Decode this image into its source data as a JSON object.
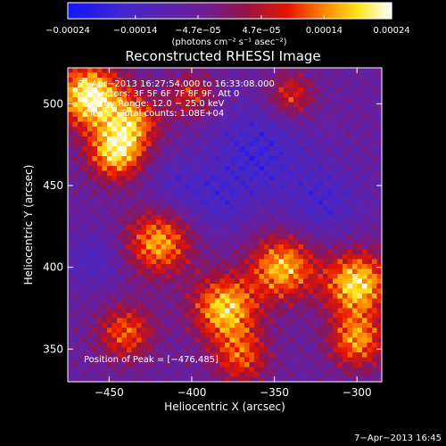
{
  "chart_data": {
    "type": "heatmap",
    "title": "Reconstructed RHESSI Image",
    "xlabel": "Heliocentric X (arcsec)",
    "ylabel": "Heliocentric Y (arcsec)",
    "xlim": [
      -475,
      -285
    ],
    "ylim": [
      330,
      522
    ],
    "x_ticks": [
      -450,
      -400,
      -350,
      -300
    ],
    "x_tick_labels": [
      "−450",
      "−400",
      "−350",
      "−300"
    ],
    "y_ticks": [
      350,
      400,
      450,
      500
    ],
    "y_tick_labels": [
      "350",
      "400",
      "450",
      "500"
    ],
    "grid": false,
    "colorbar": {
      "colormap": "blue-purple-red-yellow-white",
      "vmin": -0.00024,
      "vmax": 0.00024,
      "ticks": [
        -0.00024,
        -0.00014,
        -4.7e-05,
        4.7e-05,
        0.00014,
        0.00024
      ],
      "tick_labels": [
        "−0.00024",
        "−0.00014",
        "−4.7e−05",
        "4.7e−05",
        "0.00014",
        "0.00024"
      ],
      "unit_label": "(photons cm⁻² s⁻¹ asec⁻²)"
    },
    "annotations": [
      "7−Apr−2013 16:27:54.000 to 16:33:08.000",
      "Detectors: 3F 5F 6F 7F 8F 9F, Att 0",
      "Energy Range: 12.0 − 25.0 keV",
      "Clean    Total counts: 1.08E+04",
      "Position of Peak = [−476,485]"
    ],
    "peak_position": [
      -476,
      485
    ],
    "hot_regions": [
      {
        "x": -462,
        "y": 505,
        "amplitude": 1.0,
        "spread": 14
      },
      {
        "x": -446,
        "y": 470,
        "amplitude": 0.85,
        "spread": 12
      },
      {
        "x": -435,
        "y": 490,
        "amplitude": 0.6,
        "spread": 12
      },
      {
        "x": -400,
        "y": 505,
        "amplitude": 0.45,
        "spread": 10
      },
      {
        "x": -340,
        "y": 505,
        "amplitude": 0.5,
        "spread": 10
      },
      {
        "x": -420,
        "y": 415,
        "amplitude": 0.75,
        "spread": 14
      },
      {
        "x": -440,
        "y": 360,
        "amplitude": 0.6,
        "spread": 12
      },
      {
        "x": -380,
        "y": 375,
        "amplitude": 0.85,
        "spread": 14
      },
      {
        "x": -345,
        "y": 400,
        "amplitude": 0.8,
        "spread": 14
      },
      {
        "x": -300,
        "y": 390,
        "amplitude": 0.9,
        "spread": 14
      },
      {
        "x": -300,
        "y": 355,
        "amplitude": 0.7,
        "spread": 12
      },
      {
        "x": -370,
        "y": 345,
        "amplitude": 0.55,
        "spread": 12
      }
    ],
    "cold_regions": [
      {
        "x": -360,
        "y": 470,
        "amplitude": 0.7,
        "spread": 20
      },
      {
        "x": -320,
        "y": 440,
        "amplitude": 0.55,
        "spread": 16
      },
      {
        "x": -385,
        "y": 440,
        "amplitude": 0.45,
        "spread": 14
      },
      {
        "x": -410,
        "y": 450,
        "amplitude": 0.4,
        "spread": 12
      },
      {
        "x": -460,
        "y": 405,
        "amplitude": 0.45,
        "spread": 12
      }
    ]
  },
  "footer": {
    "timestamp": "7−Apr−2013 16:45"
  }
}
